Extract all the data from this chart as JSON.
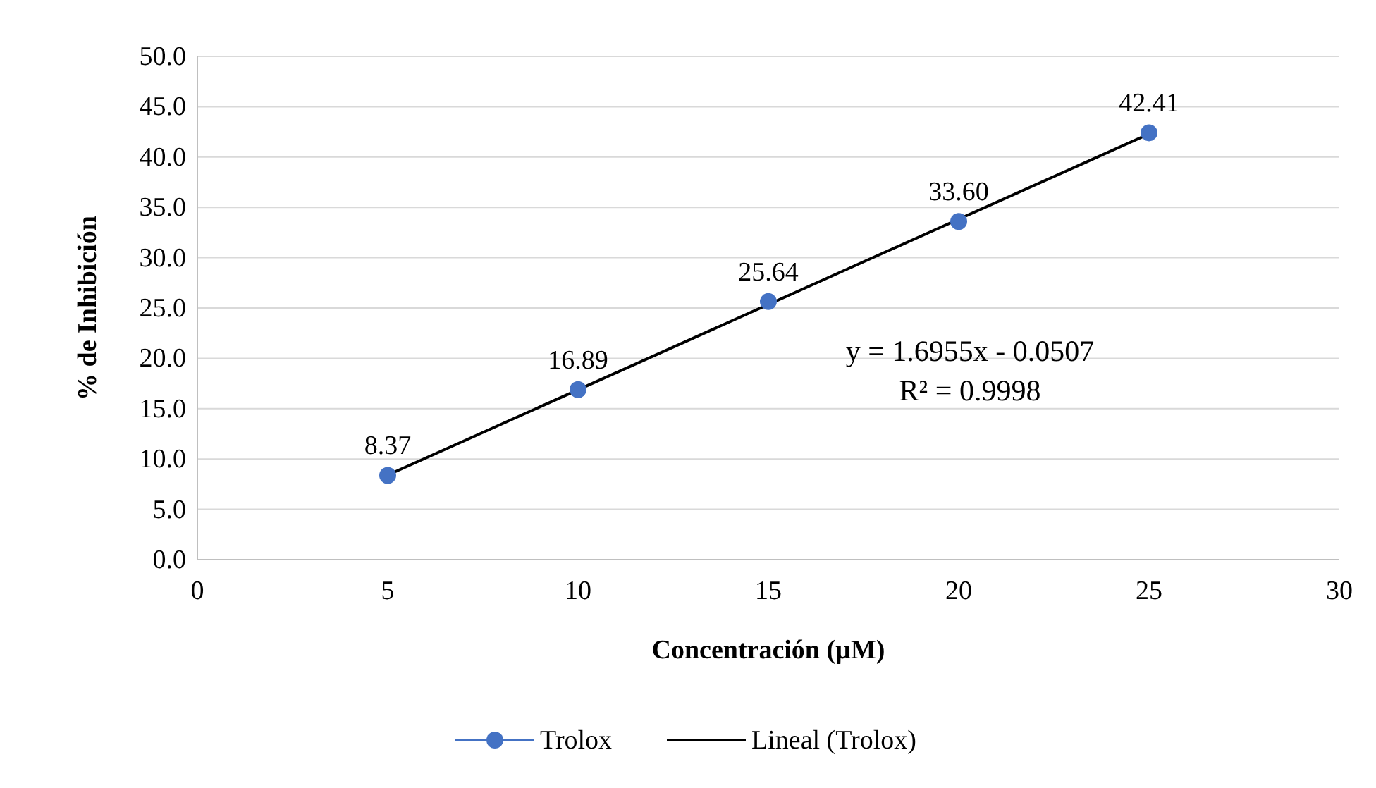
{
  "chart_data": {
    "type": "scatter",
    "xlabel": "Concentración (µM)",
    "ylabel": "% de Inhibición",
    "xlim": [
      0,
      30
    ],
    "xticks": [
      0,
      5,
      10,
      15,
      20,
      25,
      30
    ],
    "ylim": [
      0,
      50
    ],
    "yticks": [
      {
        "value": 0,
        "label": "0.0"
      },
      {
        "value": 5,
        "label": "5.0"
      },
      {
        "value": 10,
        "label": "10.0"
      },
      {
        "value": 15,
        "label": "15.0"
      },
      {
        "value": 20,
        "label": "20.0"
      },
      {
        "value": 25,
        "label": "25.0"
      },
      {
        "value": 30,
        "label": "30.0"
      },
      {
        "value": 35,
        "label": "35.0"
      },
      {
        "value": 40,
        "label": "40.0"
      },
      {
        "value": 45,
        "label": "45.0"
      },
      {
        "value": 50,
        "label": "50.0"
      }
    ],
    "grid": "y",
    "legend": "bottom",
    "series": [
      {
        "name": "Trolox",
        "color": "#4472c4",
        "marker": "circle",
        "data_labels": true,
        "value_labels": [
          "8.37",
          "16.89",
          "25.64",
          "33.60",
          "42.41"
        ],
        "x": [
          5,
          10,
          15,
          20,
          25
        ],
        "values": [
          8.37,
          16.89,
          25.64,
          33.6,
          42.41
        ]
      },
      {
        "name": "Lineal (Trolox)",
        "type": "line",
        "color": "#000000",
        "marker": "none",
        "line_style": "solid",
        "x": [
          5,
          25
        ],
        "values": [
          8.4,
          42.3
        ]
      }
    ],
    "annotations": [
      "y = 1.6955x - 0.0507",
      "R² = 0.9998"
    ]
  }
}
